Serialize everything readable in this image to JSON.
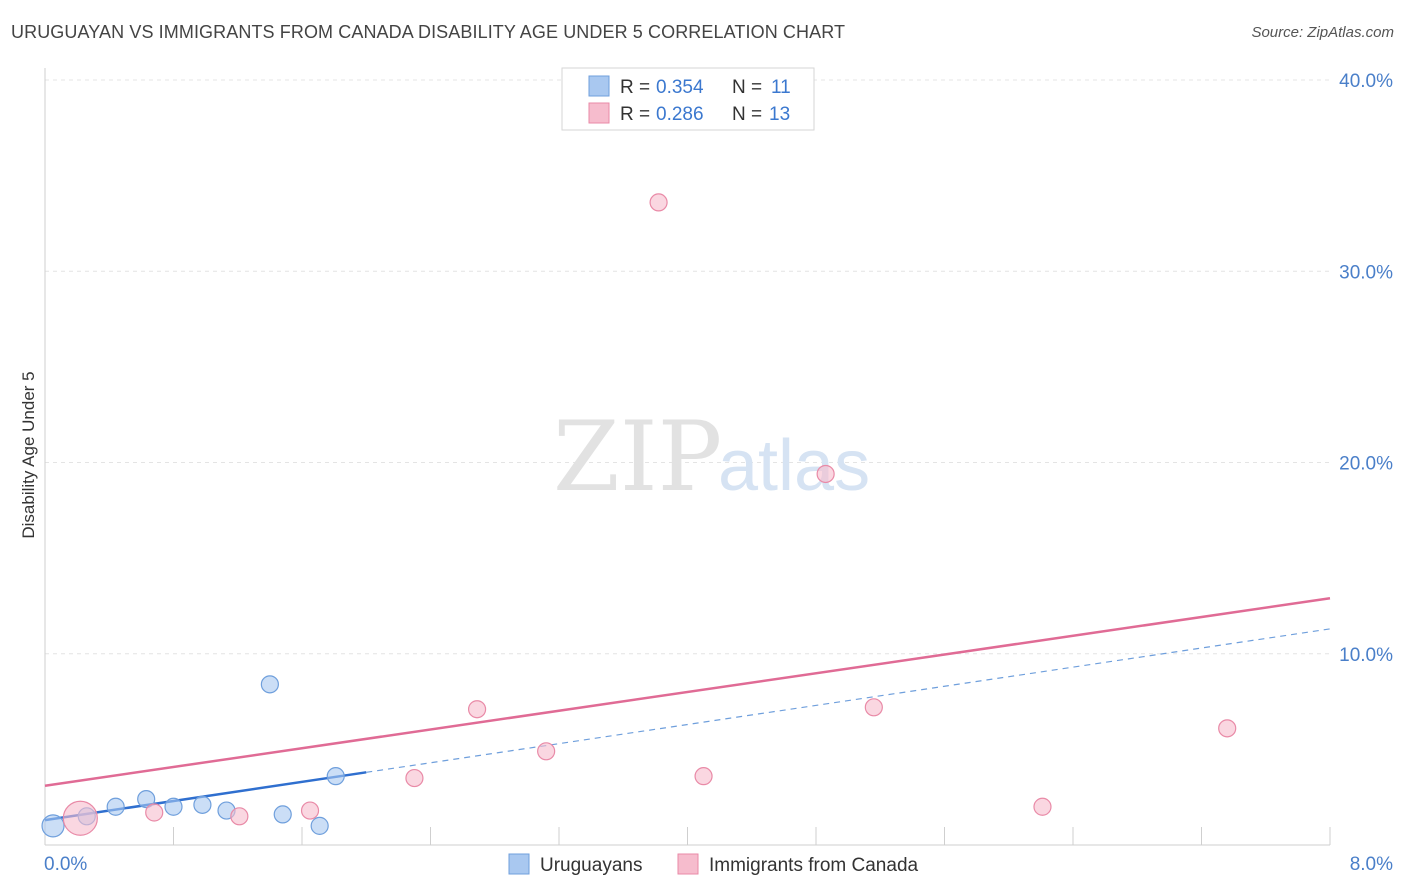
{
  "title": "URUGUAYAN VS IMMIGRANTS FROM CANADA DISABILITY AGE UNDER 5 CORRELATION CHART",
  "source": "Source: ZipAtlas.com",
  "watermark": {
    "zip": "ZIP",
    "atlas": "atlas"
  },
  "chart_data": {
    "type": "scatter",
    "ylabel": "Disability Age Under 5",
    "xlim": [
      0.0,
      8.0
    ],
    "ylim": [
      0.0,
      40.0
    ],
    "x_tick_labels": [
      "0.0%",
      "8.0%"
    ],
    "y_ticks": [
      {
        "value": 10,
        "label": "10.0%"
      },
      {
        "value": 20,
        "label": "20.0%"
      },
      {
        "value": 30,
        "label": "30.0%"
      },
      {
        "value": 40,
        "label": "40.0%"
      }
    ],
    "legend": [
      {
        "r_label": "R =",
        "r_value": "0.354",
        "n_label": "N =",
        "n_value": "11",
        "color": "#a9c8f0",
        "stroke": "#6f9fdc"
      },
      {
        "r_label": "R =",
        "r_value": "0.286",
        "n_label": "N =",
        "n_value": "13",
        "color": "#f6bccd",
        "stroke": "#e98aa7"
      }
    ],
    "series": [
      {
        "name": "Uruguayans",
        "color": "#a9c8f0",
        "stroke": "#6f9fdc",
        "line_color": "#2f6fcf",
        "points": [
          {
            "x": 0.05,
            "y": 1.0,
            "size": 22
          },
          {
            "x": 0.26,
            "y": 1.5,
            "size": 17
          },
          {
            "x": 0.44,
            "y": 2.0,
            "size": 17
          },
          {
            "x": 0.63,
            "y": 2.4,
            "size": 17
          },
          {
            "x": 0.8,
            "y": 2.0,
            "size": 17
          },
          {
            "x": 0.98,
            "y": 2.1,
            "size": 17
          },
          {
            "x": 1.13,
            "y": 1.8,
            "size": 17
          },
          {
            "x": 1.4,
            "y": 8.4,
            "size": 17
          },
          {
            "x": 1.48,
            "y": 1.6,
            "size": 17
          },
          {
            "x": 1.71,
            "y": 1.0,
            "size": 17
          },
          {
            "x": 1.81,
            "y": 3.6,
            "size": 17
          }
        ],
        "trend": {
          "x0": 0.0,
          "y0": 1.3,
          "x1": 2.0,
          "y1": 3.8
        },
        "trend_ext": {
          "x0": 2.0,
          "y0": 3.8,
          "x1": 8.0,
          "y1": 11.3
        }
      },
      {
        "name": "Immigrants from Canada",
        "color": "#f6bccd",
        "stroke": "#e98aa7",
        "line_color": "#e06b95",
        "points": [
          {
            "x": 0.22,
            "y": 1.4,
            "size": 34
          },
          {
            "x": 0.68,
            "y": 1.7,
            "size": 17
          },
          {
            "x": 1.21,
            "y": 1.5,
            "size": 17
          },
          {
            "x": 1.65,
            "y": 1.8,
            "size": 17
          },
          {
            "x": 2.3,
            "y": 3.5,
            "size": 17
          },
          {
            "x": 2.69,
            "y": 7.1,
            "size": 17
          },
          {
            "x": 3.12,
            "y": 4.9,
            "size": 17
          },
          {
            "x": 3.82,
            "y": 33.6,
            "size": 17
          },
          {
            "x": 4.1,
            "y": 3.6,
            "size": 17
          },
          {
            "x": 4.86,
            "y": 19.4,
            "size": 17
          },
          {
            "x": 5.16,
            "y": 7.2,
            "size": 17
          },
          {
            "x": 6.21,
            "y": 2.0,
            "size": 17
          },
          {
            "x": 7.36,
            "y": 6.1,
            "size": 17
          }
        ],
        "trend": {
          "x0": 0.0,
          "y0": 3.1,
          "x1": 8.0,
          "y1": 12.9
        }
      }
    ]
  }
}
